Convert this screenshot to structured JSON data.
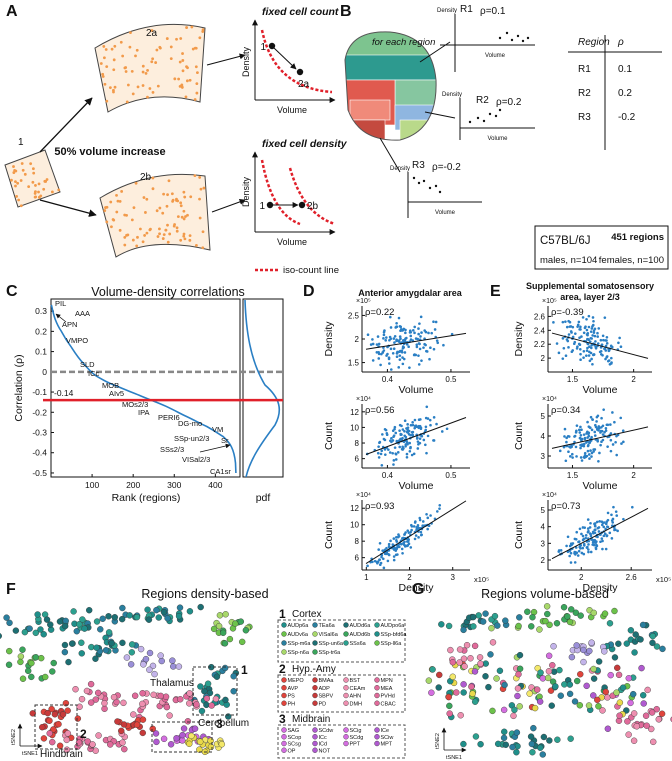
{
  "A": {
    "label": "A",
    "patch_1": "1",
    "patch_2a": "2a",
    "patch_2b": "2b",
    "change": "50% volume increase",
    "top_title": "fixed cell count",
    "bottom_title": "fixed cell density",
    "axis_y": "Density",
    "axis_x": "Volume",
    "top_points": [
      "1",
      "2a"
    ],
    "bottom_points": [
      "1",
      "2b"
    ],
    "legend": "iso-count line"
  },
  "B": {
    "label": "B",
    "caption": "for each region",
    "axis_y": "Density",
    "axis_x": "Volume",
    "plots": [
      {
        "name": "R1",
        "rho": "ρ=0.1"
      },
      {
        "name": "R2",
        "rho": "ρ=0.2"
      },
      {
        "name": "R3",
        "rho": "ρ=-0.2"
      }
    ],
    "table": {
      "header": [
        "Region",
        "ρ"
      ],
      "rows": [
        [
          "R1",
          "0.1"
        ],
        [
          "R2",
          "0.2"
        ],
        [
          "R3",
          "-0.2"
        ]
      ]
    },
    "info": {
      "strain": "C57BL/6J",
      "regions": "451 regions",
      "males": "males, n=104",
      "females": "females, n=100"
    }
  },
  "C": {
    "label": "C",
    "title": "Volume-density correlations",
    "ylabel": "Correlation (ρ)",
    "xlabel": "Rank (regions)",
    "pdf_label": "pdf",
    "ylim": [
      -0.52,
      0.36
    ],
    "yticks": [
      0.3,
      0.2,
      0.1,
      0,
      -0.1,
      -0.2,
      -0.3,
      -0.4,
      -0.5
    ],
    "xlim": [
      0,
      460
    ],
    "xticks": [
      100,
      200,
      300,
      400
    ],
    "mean": -0.14,
    "regions": [
      "PIL",
      "AAA",
      "APN",
      "VMPO",
      "SLD",
      "ICc",
      "MOB",
      "AIv5",
      "MOs2/3",
      "IPA",
      "PERI6",
      "DG-mo",
      "SSp-un2/3",
      "VM",
      "Sr",
      "SSs2/3",
      "VISal2/3",
      "CA1sr"
    ]
  },
  "D": {
    "label": "D",
    "title": "Anterior amygdalar area",
    "plots": [
      {
        "ylabel": "Density",
        "xlabel": "Volume",
        "rho": "ρ=0.22",
        "y_exp": "×10⁵",
        "ylim": [
          1.3,
          2.7
        ],
        "yticks": [
          1.5,
          2,
          2.5
        ],
        "xlim": [
          0.36,
          0.53
        ],
        "xticks": [
          0.4,
          0.5
        ]
      },
      {
        "ylabel": "Count",
        "xlabel": "Volume",
        "rho": "ρ=0.56",
        "y_exp": "×10⁴",
        "ylim": [
          4.8,
          13
        ],
        "yticks": [
          6,
          8,
          10,
          12
        ],
        "xlim": [
          0.36,
          0.53
        ],
        "xticks": [
          0.4,
          0.5
        ]
      },
      {
        "ylabel": "Count",
        "xlabel": "Density",
        "rho": "ρ=0.93",
        "y_exp": "×10⁴",
        "x_exp": "x10⁵",
        "ylim": [
          4.5,
          13
        ],
        "yticks": [
          6,
          8,
          10,
          12
        ],
        "xlim": [
          0.9,
          3.4
        ],
        "xticks": [
          1,
          2,
          3
        ]
      }
    ]
  },
  "E": {
    "label": "E",
    "title": [
      "Supplemental somatosensory",
      "area, layer 2/3"
    ],
    "plots": [
      {
        "ylabel": "Density",
        "xlabel": "Volume",
        "rho": "ρ=-0.39",
        "y_exp": "×10⁵",
        "ylim": [
          1.8,
          2.75
        ],
        "yticks": [
          2,
          2.2,
          2.4,
          2.6
        ],
        "xlim": [
          1.3,
          2.15
        ],
        "xticks": [
          1.5,
          2
        ]
      },
      {
        "ylabel": "Count",
        "xlabel": "Volume",
        "rho": "ρ=0.34",
        "y_exp": "×10⁴",
        "ylim": [
          2.4,
          5.6
        ],
        "yticks": [
          3,
          4,
          5
        ],
        "xlim": [
          1.3,
          2.15
        ],
        "xticks": [
          1.5,
          2
        ]
      },
      {
        "ylabel": "Count",
        "xlabel": "Density",
        "rho": "ρ=0.73",
        "y_exp": "×10⁴",
        "x_exp": "x10⁵",
        "ylim": [
          1.4,
          5.6
        ],
        "yticks": [
          2,
          3,
          4,
          5
        ],
        "xlim": [
          1.6,
          2.85
        ],
        "xticks": [
          2,
          2.6
        ]
      }
    ]
  },
  "F": {
    "label": "F",
    "title": "Regions density-based",
    "clusters": [
      "1",
      "2",
      "3"
    ],
    "groups": [
      "Thalamus",
      "Hindbrain",
      "Cerebellum"
    ],
    "axis_x": "tSNE1",
    "axis_y": "tSNE2",
    "insets": [
      {
        "num": "1",
        "title": "Cortex",
        "labels": [
          "AUDp6a",
          "TEa6a",
          "AUDd6a",
          "AUDpo6a",
          "AUDv6a",
          "VISal6a",
          "AUDd6b",
          "SSp-bfd6a",
          "SSp-m6a",
          "SSp-un6a",
          "SSs6a",
          "SSp-ll6a",
          "SSp-n6a",
          "SSp-tr6a"
        ]
      },
      {
        "num": "2",
        "title": "Hyp.-Amy",
        "labels": [
          "MEPO",
          "BMAa",
          "BST",
          "MPN",
          "AVP",
          "ADP",
          "CEAm",
          "MEA",
          "PS",
          "SBPV",
          "AHN",
          "PVHd",
          "PH",
          "PD",
          "DMH",
          "CBAC"
        ]
      },
      {
        "num": "3",
        "title": "Midbrain",
        "labels": [
          "SAG",
          "SCdw",
          "SCig",
          "ICe",
          "SCop",
          "ICc",
          "SCdg",
          "SCiw",
          "SCsg",
          "ICd",
          "PPT",
          "MPT",
          "OP",
          "NOT"
        ]
      }
    ]
  },
  "G": {
    "label": "G",
    "title": "Regions volume-based",
    "axis_x": "tSNE1",
    "axis_y": "tSNE2"
  }
}
